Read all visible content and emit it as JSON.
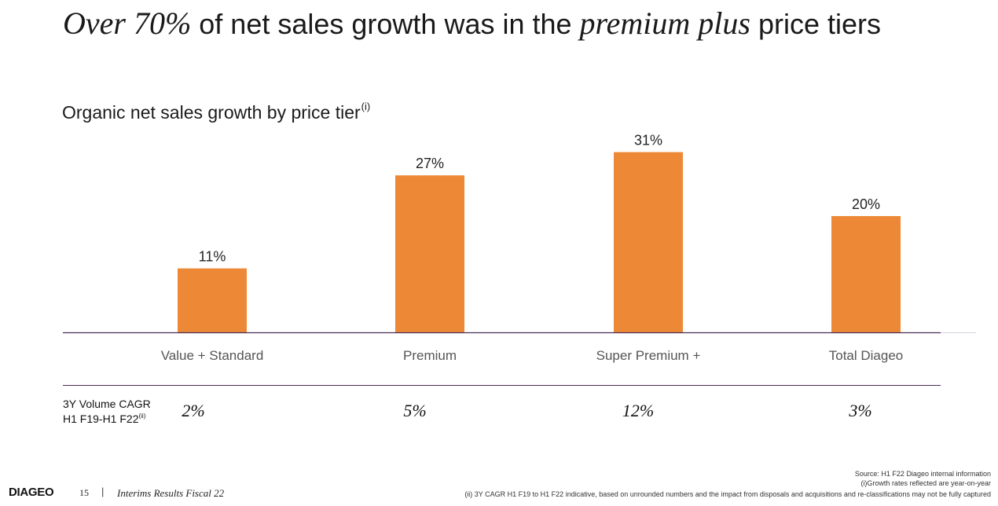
{
  "title": {
    "part1": "Over 70%",
    "part2": " of net sales growth was in the ",
    "part3": "premium plus",
    "part4": " price tiers"
  },
  "chart_data": {
    "type": "bar",
    "title": "Organic net sales growth by price tier",
    "title_note": "(i)",
    "categories": [
      "Value + Standard",
      "Premium",
      "Super Premium +",
      "Total Diageo"
    ],
    "values": [
      11,
      27,
      31,
      20
    ],
    "value_labels": [
      "11%",
      "27%",
      "31%",
      "20%"
    ],
    "unit": "%",
    "ylim": [
      0,
      35
    ],
    "grid": false,
    "bar_color": "#ED8936",
    "axis_color": "#4A2D57"
  },
  "cagr": {
    "label_line1": "3Y Volume CAGR",
    "label_line2": "H1 F19-H1 F22",
    "label_note": "(ii)",
    "values": [
      "2%",
      "5%",
      "12%",
      "3%"
    ]
  },
  "footnotes": {
    "source": "Source: H1 F22 Diageo internal information",
    "note1": "(i)Growth rates reflected are year-on-year",
    "note2": "(ii) 3Y CAGR H1 F19 to H1 F22 indicative, based on unrounded numbers and the impact from disposals and acquisitions and re-classifications may not be fully captured"
  },
  "footer": {
    "logo": "DIAGEO",
    "page": "15",
    "separator": "|",
    "doc_title": "Interims Results Fiscal 22"
  }
}
